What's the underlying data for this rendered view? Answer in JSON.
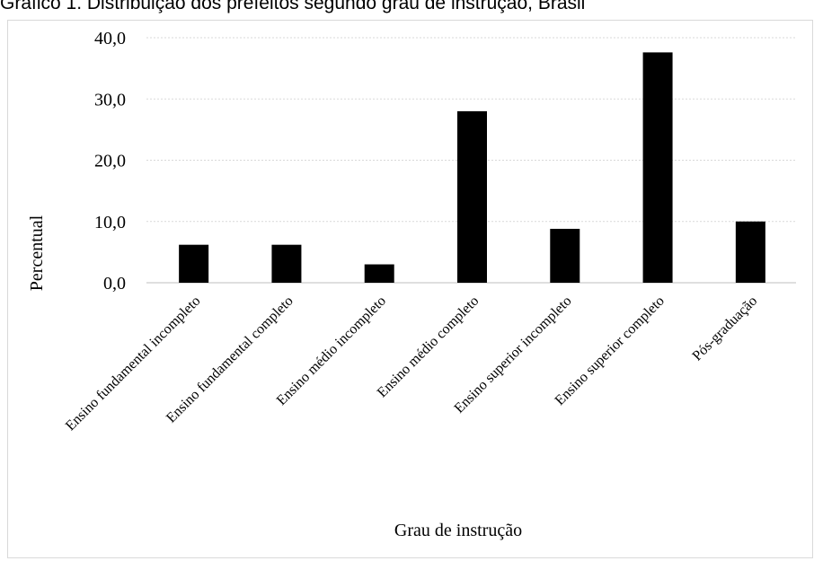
{
  "title": "Gráfico 1. Distribuição dos prefeitos segundo grau de instrução, Brasil",
  "chart_data": {
    "type": "bar",
    "xlabel": "Grau de instrução",
    "ylabel": "Percentual",
    "ylim": [
      0,
      40
    ],
    "yticks": [
      "0,0",
      "10,0",
      "20,0",
      "30,0",
      "40,0"
    ],
    "grid": true,
    "categories": [
      "Ensino fundamental incompleto",
      "Ensino fundamental completo",
      "Ensino médio incompleto",
      "Ensino médio completo",
      "Ensino superior incompleto",
      "Ensino superior completo",
      "Pós-graduação"
    ],
    "values": [
      6.2,
      6.2,
      3.0,
      28.0,
      8.8,
      37.6,
      10.0
    ],
    "bar_color": "#000000",
    "grid_color": "#d9d9d9"
  }
}
